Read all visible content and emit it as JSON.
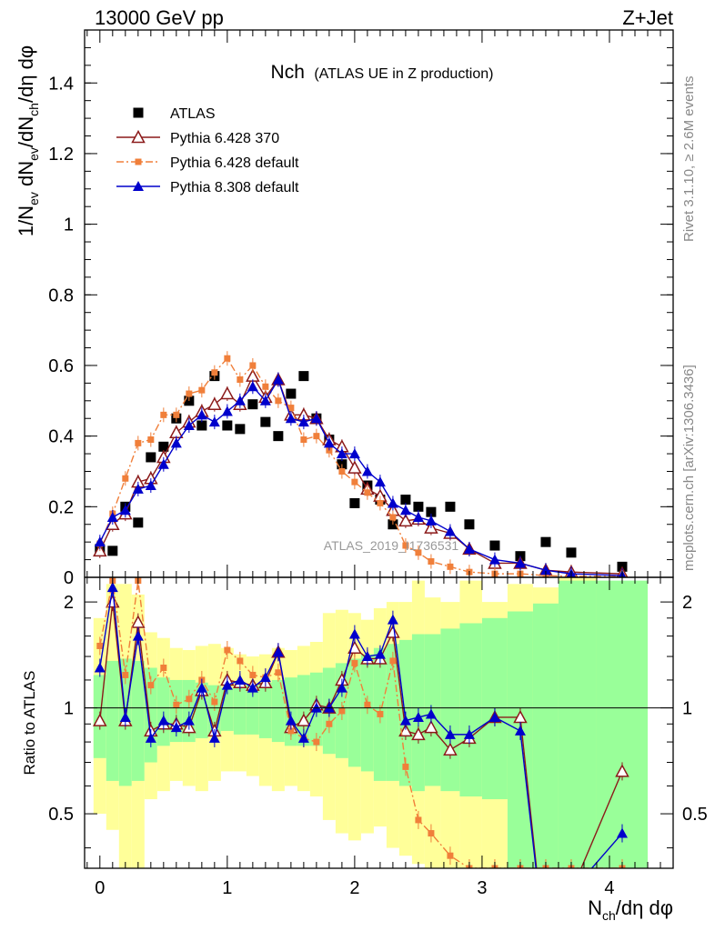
{
  "chart_data": {
    "type": "scatter",
    "header_left": "13000 GeV pp",
    "header_right": "Z+Jet",
    "title_main": "Nch",
    "title_sub": "(ATLAS UE in Z production)",
    "ylabel_top": "1/N_ev dN_ev/dN_ch/dη dφ",
    "ylabel_top_parts": {
      "a": "1/N",
      "a_sub": "ev",
      "b": " dN",
      "b_sub": "ev",
      "c": "/dN",
      "c_sub": "ch",
      "d": "/dη dφ"
    },
    "ylabel_bottom": "Ratio to ATLAS",
    "xlabel": "N_ch/dη dφ",
    "xlabel_parts": {
      "a": "N",
      "a_sub": "ch",
      "b": "/dη dφ"
    },
    "side_label_1": "Rivet 3.1.10, ≥ 2.6M events",
    "side_label_2": "mcplots.cern.ch [arXiv:1306.3436]",
    "watermark": "ATLAS_2019_I1736531",
    "x_range": [
      -0.12,
      4.5
    ],
    "y_range_top": [
      0,
      1.55
    ],
    "y_range_bottom": [
      0.35,
      2.35
    ],
    "x_ticks": [
      {
        "v": 0,
        "label": "0"
      },
      {
        "v": 1,
        "label": "1"
      },
      {
        "v": 2,
        "label": "2"
      },
      {
        "v": 3,
        "label": "3"
      },
      {
        "v": 4,
        "label": "4"
      }
    ],
    "y_ticks_top": [
      {
        "v": 0,
        "label": "0"
      },
      {
        "v": 0.2,
        "label": "0.2"
      },
      {
        "v": 0.4,
        "label": "0.4"
      },
      {
        "v": 0.6,
        "label": "0.6"
      },
      {
        "v": 0.8,
        "label": "0.8"
      },
      {
        "v": 1.0,
        "label": "1"
      },
      {
        "v": 1.2,
        "label": "1.2"
      },
      {
        "v": 1.4,
        "label": "1.4"
      }
    ],
    "y_ticks_bottom": [
      {
        "v": 0.5,
        "label": "0.5"
      },
      {
        "v": 1,
        "label": "1"
      },
      {
        "v": 2,
        "label": "2"
      }
    ],
    "x": [
      0,
      0.1,
      0.2,
      0.3,
      0.4,
      0.5,
      0.6,
      0.7,
      0.8,
      0.9,
      1.0,
      1.1,
      1.2,
      1.3,
      1.4,
      1.5,
      1.6,
      1.7,
      1.8,
      1.9,
      2.0,
      2.1,
      2.2,
      2.3,
      2.4,
      2.5,
      2.6,
      2.75,
      2.9,
      3.1,
      3.3,
      3.5,
      3.7,
      4.1
    ],
    "bands": {
      "inner_low": [
        0.72,
        0.62,
        0.6,
        0.62,
        0.7,
        0.78,
        0.8,
        0.8,
        0.82,
        0.84,
        0.86,
        0.84,
        0.84,
        0.82,
        0.8,
        0.78,
        0.78,
        0.78,
        0.74,
        0.72,
        0.68,
        0.66,
        0.62,
        0.62,
        0.6,
        0.58,
        0.6,
        0.58,
        0.56,
        0.55,
        0.35,
        0.35,
        0.35,
        0.35
      ],
      "inner_high": [
        1.24,
        1.36,
        1.38,
        1.36,
        1.3,
        1.22,
        1.2,
        1.2,
        1.18,
        1.16,
        1.14,
        1.16,
        1.16,
        1.18,
        1.2,
        1.22,
        1.24,
        1.26,
        1.3,
        1.34,
        1.38,
        1.42,
        1.48,
        1.52,
        1.56,
        1.62,
        1.62,
        1.68,
        1.74,
        1.8,
        1.88,
        1.98,
        2.3,
        2.3
      ],
      "outer_low": [
        0.5,
        0.45,
        0.35,
        0.35,
        0.55,
        0.58,
        0.62,
        0.6,
        0.58,
        0.62,
        0.66,
        0.66,
        0.64,
        0.6,
        0.58,
        0.6,
        0.58,
        0.56,
        0.48,
        0.44,
        0.42,
        0.44,
        0.46,
        0.4,
        0.38,
        0.36,
        0.35,
        0.35,
        0.35,
        0.35,
        0.35,
        0.35,
        0.35,
        0.35
      ],
      "outer_high": [
        1.8,
        2.25,
        2.25,
        2.1,
        1.64,
        1.58,
        1.48,
        1.46,
        1.5,
        1.52,
        1.48,
        1.42,
        1.4,
        1.42,
        1.48,
        1.46,
        1.5,
        1.54,
        1.86,
        1.9,
        1.86,
        1.78,
        1.92,
        2.0,
        2.0,
        2.3,
        2.06,
        2.0,
        2.3,
        2.0,
        2.25,
        2.2,
        2.35,
        2.2
      ]
    },
    "series": [
      {
        "name": "ATLAS",
        "color": "#000000",
        "marker": "square",
        "x": [
          0,
          0.1,
          0.2,
          0.3,
          0.4,
          0.5,
          0.6,
          0.7,
          0.8,
          0.9,
          1.0,
          1.1,
          1.2,
          1.3,
          1.4,
          1.5,
          1.6,
          1.7,
          1.8,
          1.9,
          2.0,
          2.1,
          2.2,
          2.3,
          2.4,
          2.5,
          2.6,
          2.75,
          2.9,
          3.1,
          3.3,
          3.5,
          3.7,
          4.1
        ],
        "y": [
          0.08,
          0.075,
          0.2,
          0.155,
          0.34,
          0.37,
          0.45,
          0.5,
          0.43,
          0.57,
          0.43,
          0.42,
          0.49,
          0.44,
          0.4,
          0.52,
          0.57,
          0.45,
          0.39,
          0.32,
          0.21,
          0.26,
          0.22,
          0.15,
          0.22,
          0.2,
          0.185,
          0.2,
          0.15,
          0.09,
          0.06,
          0.1,
          0.07,
          0.03
        ]
      },
      {
        "name": "Pythia 6.428 370",
        "color": "#8b1a1a",
        "marker": "triangle-open",
        "dash": "",
        "x": [
          0,
          0.1,
          0.2,
          0.3,
          0.4,
          0.5,
          0.6,
          0.7,
          0.8,
          0.9,
          1.0,
          1.1,
          1.2,
          1.3,
          1.4,
          1.5,
          1.6,
          1.7,
          1.8,
          1.9,
          2.0,
          2.1,
          2.2,
          2.3,
          2.4,
          2.5,
          2.6,
          2.75,
          2.9,
          3.1,
          3.3,
          3.5,
          3.7,
          4.1
        ],
        "y": [
          0.075,
          0.15,
          0.18,
          0.27,
          0.28,
          0.34,
          0.41,
          0.44,
          0.47,
          0.49,
          0.52,
          0.49,
          0.57,
          0.51,
          0.56,
          0.46,
          0.46,
          0.45,
          0.39,
          0.37,
          0.31,
          0.25,
          0.23,
          0.19,
          0.16,
          0.165,
          0.14,
          0.125,
          0.08,
          0.04,
          0.04,
          0.02,
          0.015,
          0.01
        ],
        "ratio": [
          0.92,
          2.0,
          0.92,
          1.75,
          0.86,
          0.9,
          0.9,
          0.88,
          1.12,
          0.86,
          1.2,
          1.18,
          1.16,
          1.18,
          1.44,
          0.88,
          0.92,
          1.02,
          1.0,
          1.2,
          1.48,
          1.38,
          1.38,
          1.64,
          0.86,
          0.84,
          0.88,
          0.76,
          0.82,
          0.94,
          0.94,
          0.2,
          0.3,
          0.66
        ]
      },
      {
        "name": "Pythia 6.428 default",
        "color": "#f07f3a",
        "marker": "square-small",
        "dash": "8,3,2,3",
        "x": [
          0,
          0.1,
          0.2,
          0.3,
          0.4,
          0.5,
          0.6,
          0.7,
          0.8,
          0.9,
          1.0,
          1.1,
          1.2,
          1.3,
          1.4,
          1.5,
          1.6,
          1.7,
          1.8,
          1.9,
          2.0,
          2.1,
          2.2,
          2.3,
          2.4,
          2.5,
          2.6,
          2.75,
          2.9,
          3.1,
          3.3,
          3.5,
          3.7,
          4.1
        ],
        "y": [
          0.095,
          0.18,
          0.28,
          0.38,
          0.39,
          0.46,
          0.46,
          0.52,
          0.53,
          0.58,
          0.62,
          0.56,
          0.6,
          0.54,
          0.5,
          0.48,
          0.39,
          0.4,
          0.36,
          0.3,
          0.27,
          0.24,
          0.21,
          0.17,
          0.09,
          0.07,
          0.045,
          0.03,
          0.015,
          0.01,
          0.01,
          0.005,
          0.003,
          0.002
        ],
        "ratio": [
          1.5,
          2.3,
          1.24,
          2.3,
          1.16,
          1.3,
          1.02,
          1.06,
          1.2,
          1.04,
          1.46,
          1.36,
          1.24,
          1.22,
          1.26,
          0.86,
          0.82,
          0.8,
          0.9,
          0.98,
          1.34,
          1.02,
          0.96,
          1.36,
          0.68,
          0.48,
          0.44,
          0.38,
          0.35,
          0.35,
          0.35,
          0.35,
          0.35,
          0.35
        ]
      },
      {
        "name": "Pythia 8.308 default",
        "color": "#0000cc",
        "marker": "triangle",
        "dash": "",
        "x": [
          0,
          0.1,
          0.2,
          0.3,
          0.4,
          0.5,
          0.6,
          0.7,
          0.8,
          0.9,
          1.0,
          1.1,
          1.2,
          1.3,
          1.4,
          1.5,
          1.6,
          1.7,
          1.8,
          1.9,
          2.0,
          2.1,
          2.2,
          2.3,
          2.4,
          2.5,
          2.6,
          2.75,
          2.9,
          3.1,
          3.3,
          3.5,
          3.7,
          4.1
        ],
        "y": [
          0.1,
          0.17,
          0.19,
          0.25,
          0.26,
          0.32,
          0.38,
          0.43,
          0.46,
          0.44,
          0.47,
          0.5,
          0.54,
          0.5,
          0.56,
          0.45,
          0.44,
          0.45,
          0.38,
          0.35,
          0.35,
          0.3,
          0.27,
          0.21,
          0.19,
          0.17,
          0.16,
          0.13,
          0.08,
          0.05,
          0.04,
          0.02,
          0.01,
          0.005
        ],
        "ratio": [
          1.3,
          2.2,
          0.94,
          1.6,
          0.82,
          0.92,
          0.88,
          0.92,
          1.14,
          0.82,
          1.16,
          1.2,
          1.14,
          1.22,
          1.44,
          0.92,
          0.82,
          1.0,
          1.0,
          1.14,
          1.62,
          1.4,
          1.42,
          1.78,
          0.92,
          0.94,
          0.96,
          0.84,
          0.84,
          0.94,
          0.86,
          0.2,
          0.3,
          0.44
        ]
      }
    ]
  }
}
